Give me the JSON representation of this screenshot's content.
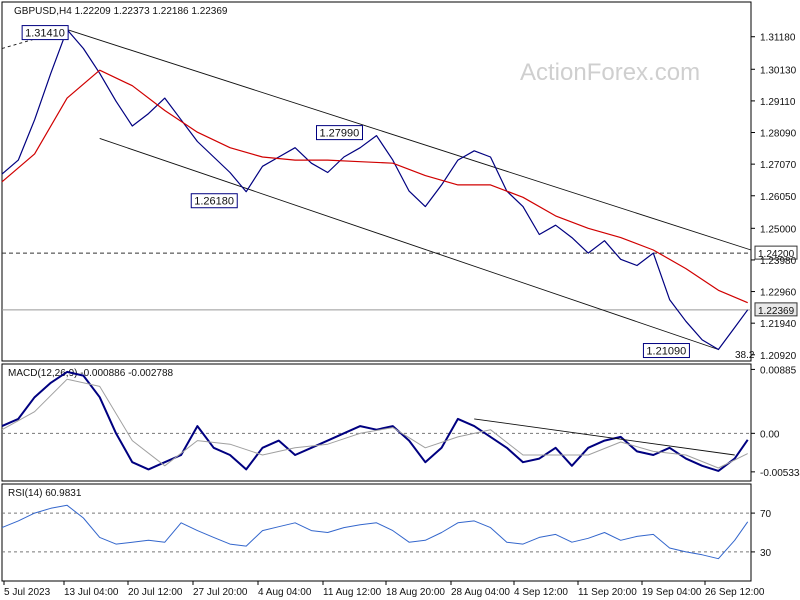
{
  "chart_data": [
    {
      "type": "line",
      "panel": "price",
      "header": "GBPUSD,H4 1.22209 1.22373 1.22186 1.22369",
      "watermark": "ActionForex.com",
      "y_ticks": [
        "1.31180",
        "1.30130",
        "1.29110",
        "1.28090",
        "1.27070",
        "1.26050",
        "1.25000",
        "1.23980",
        "1.22960",
        "1.21940",
        "1.20920"
      ],
      "ylim": [
        1.2072,
        1.323
      ],
      "x_range": [
        0,
        460
      ],
      "x_labels": [
        "5 Jul 2023",
        "13 Jul 04:00",
        "20 Jul 12:00",
        "27 Jul 20:00",
        "4 Aug 04:00",
        "11 Aug 12:00",
        "18 Aug 20:00",
        "28 Aug 04:00",
        "4 Sep 12:00",
        "11 Sep 20:00",
        "19 Sep 04:00",
        "26 Sep 12:00"
      ],
      "series": [
        {
          "name": "",
          "color": "#000080",
          "points": [
            [
              0,
              1.2675
            ],
            [
              10,
              1.272
            ],
            [
              20,
              1.285
            ],
            [
              30,
              1.3
            ],
            [
              40,
              1.3141
            ],
            [
              50,
              1.308
            ],
            [
              60,
              1.3
            ],
            [
              70,
              1.291
            ],
            [
              80,
              1.283
            ],
            [
              90,
              1.287
            ],
            [
              100,
              1.292
            ],
            [
              110,
              1.285
            ],
            [
              120,
              1.278
            ],
            [
              130,
              1.273
            ],
            [
              140,
              1.268
            ],
            [
              150,
              1.2618
            ],
            [
              160,
              1.27
            ],
            [
              170,
              1.273
            ],
            [
              180,
              1.276
            ],
            [
              190,
              1.271
            ],
            [
              200,
              1.268
            ],
            [
              210,
              1.273
            ],
            [
              220,
              1.276
            ],
            [
              230,
              1.2799
            ],
            [
              240,
              1.272
            ],
            [
              250,
              1.262
            ],
            [
              260,
              1.257
            ],
            [
              270,
              1.264
            ],
            [
              280,
              1.272
            ],
            [
              290,
              1.275
            ],
            [
              300,
              1.273
            ],
            [
              310,
              1.262
            ],
            [
              320,
              1.257
            ],
            [
              330,
              1.248
            ],
            [
              340,
              1.251
            ],
            [
              350,
              1.247
            ],
            [
              360,
              1.242
            ],
            [
              370,
              1.246
            ],
            [
              380,
              1.24
            ],
            [
              390,
              1.238
            ],
            [
              400,
              1.242
            ],
            [
              410,
              1.227
            ],
            [
              420,
              1.22
            ],
            [
              430,
              1.214
            ],
            [
              440,
              1.2109
            ],
            [
              450,
              1.218
            ],
            [
              458,
              1.2237
            ]
          ]
        },
        {
          "name": "",
          "color": "#d00000",
          "points": [
            [
              0,
              1.265
            ],
            [
              20,
              1.274
            ],
            [
              40,
              1.292
            ],
            [
              60,
              1.301
            ],
            [
              80,
              1.296
            ],
            [
              100,
              1.288
            ],
            [
              120,
              1.281
            ],
            [
              140,
              1.276
            ],
            [
              160,
              1.273
            ],
            [
              180,
              1.272
            ],
            [
              200,
              1.272
            ],
            [
              220,
              1.2715
            ],
            [
              240,
              1.271
            ],
            [
              260,
              1.267
            ],
            [
              280,
              1.264
            ],
            [
              300,
              1.264
            ],
            [
              320,
              1.26
            ],
            [
              340,
              1.254
            ],
            [
              360,
              1.25
            ],
            [
              380,
              1.247
            ],
            [
              400,
              1.243
            ],
            [
              420,
              1.237
            ],
            [
              440,
              1.23
            ],
            [
              458,
              1.226
            ]
          ]
        }
      ],
      "channel": {
        "upper": [
          [
            40,
            1.3141
          ],
          [
            460,
            1.243
          ]
        ],
        "lower": [
          [
            60,
            1.279
          ],
          [
            440,
            1.2109
          ]
        ],
        "pre": [
          [
            0,
            1.308
          ],
          [
            40,
            1.3141
          ]
        ]
      },
      "levels": [
        {
          "value": 1.242,
          "label": "1.24200",
          "style": "dashed"
        },
        {
          "value": 1.22369,
          "label": "1.22369",
          "style": "solid"
        }
      ],
      "annotations": [
        {
          "label": "1.31410",
          "x": 40,
          "y": 1.3141
        },
        {
          "label": "1.27990",
          "x": 230,
          "y": 1.2799
        },
        {
          "label": "1.26180",
          "x": 150,
          "y": 1.2618
        },
        {
          "label": "1.21090",
          "x": 440,
          "y": 1.2109
        }
      ],
      "fib_label": "38.2"
    },
    {
      "type": "line",
      "panel": "macd",
      "header": "MACD(12,26,9) -0.000886 -0.002788",
      "y_ticks": [
        "0.00885",
        "0.00",
        "-0.005334"
      ],
      "ylim": [
        -0.0066,
        0.0096
      ],
      "series": [
        {
          "name": "",
          "color": "#000080",
          "points": [
            [
              0,
              0.001
            ],
            [
              10,
              0.002
            ],
            [
              20,
              0.005
            ],
            [
              30,
              0.007
            ],
            [
              40,
              0.0085
            ],
            [
              50,
              0.008
            ],
            [
              60,
              0.005
            ],
            [
              70,
              0.0
            ],
            [
              80,
              -0.004
            ],
            [
              90,
              -0.005
            ],
            [
              100,
              -0.004
            ],
            [
              110,
              -0.003
            ],
            [
              120,
              0.001
            ],
            [
              130,
              -0.002
            ],
            [
              140,
              -0.003
            ],
            [
              150,
              -0.005
            ],
            [
              160,
              -0.002
            ],
            [
              170,
              -0.001
            ],
            [
              180,
              -0.003
            ],
            [
              190,
              -0.002
            ],
            [
              200,
              -0.001
            ],
            [
              210,
              0.0
            ],
            [
              220,
              0.001
            ],
            [
              230,
              0.0005
            ],
            [
              240,
              0.001
            ],
            [
              250,
              -0.001
            ],
            [
              260,
              -0.004
            ],
            [
              270,
              -0.002
            ],
            [
              280,
              0.002
            ],
            [
              290,
              0.001
            ],
            [
              300,
              -0.0005
            ],
            [
              310,
              -0.002
            ],
            [
              320,
              -0.004
            ],
            [
              330,
              -0.0035
            ],
            [
              340,
              -0.002
            ],
            [
              350,
              -0.0045
            ],
            [
              360,
              -0.002
            ],
            [
              370,
              -0.001
            ],
            [
              380,
              -0.0005
            ],
            [
              390,
              -0.0025
            ],
            [
              400,
              -0.003
            ],
            [
              410,
              -0.002
            ],
            [
              420,
              -0.0035
            ],
            [
              430,
              -0.0045
            ],
            [
              440,
              -0.0052
            ],
            [
              450,
              -0.0035
            ],
            [
              458,
              -0.0009
            ]
          ]
        },
        {
          "name": "",
          "color": "#a0a0a0",
          "points": [
            [
              0,
              0.0005
            ],
            [
              20,
              0.003
            ],
            [
              40,
              0.0075
            ],
            [
              60,
              0.0065
            ],
            [
              80,
              -0.001
            ],
            [
              100,
              -0.0045
            ],
            [
              120,
              -0.001
            ],
            [
              140,
              -0.0015
            ],
            [
              160,
              -0.003
            ],
            [
              180,
              -0.002
            ],
            [
              200,
              -0.0015
            ],
            [
              220,
              0.0
            ],
            [
              240,
              0.0008
            ],
            [
              260,
              -0.002
            ],
            [
              280,
              -0.0005
            ],
            [
              300,
              0.0005
            ],
            [
              320,
              -0.003
            ],
            [
              340,
              -0.003
            ],
            [
              360,
              -0.003
            ],
            [
              380,
              -0.0012
            ],
            [
              400,
              -0.0025
            ],
            [
              420,
              -0.003
            ],
            [
              440,
              -0.0048
            ],
            [
              458,
              -0.0028
            ]
          ]
        }
      ],
      "trendline": [
        [
          290,
          0.002
        ],
        [
          450,
          -0.003
        ]
      ]
    },
    {
      "type": "line",
      "panel": "rsi",
      "header": "RSI(14) 60.9831",
      "y_ticks": [
        "70",
        "30"
      ],
      "ylim": [
        0,
        100
      ],
      "levels": [
        70,
        30
      ],
      "series": [
        {
          "name": "",
          "color": "#3366cc",
          "points": [
            [
              0,
              55
            ],
            [
              10,
              62
            ],
            [
              20,
              70
            ],
            [
              30,
              75
            ],
            [
              40,
              78
            ],
            [
              50,
              65
            ],
            [
              60,
              45
            ],
            [
              70,
              38
            ],
            [
              80,
              40
            ],
            [
              90,
              42
            ],
            [
              100,
              40
            ],
            [
              110,
              60
            ],
            [
              120,
              52
            ],
            [
              130,
              45
            ],
            [
              140,
              38
            ],
            [
              150,
              36
            ],
            [
              160,
              52
            ],
            [
              170,
              56
            ],
            [
              180,
              60
            ],
            [
              190,
              52
            ],
            [
              200,
              50
            ],
            [
              210,
              55
            ],
            [
              220,
              58
            ],
            [
              230,
              60
            ],
            [
              240,
              52
            ],
            [
              250,
              40
            ],
            [
              260,
              42
            ],
            [
              270,
              50
            ],
            [
              280,
              60
            ],
            [
              290,
              62
            ],
            [
              300,
              55
            ],
            [
              310,
              40
            ],
            [
              320,
              38
            ],
            [
              330,
              45
            ],
            [
              340,
              48
            ],
            [
              350,
              40
            ],
            [
              360,
              44
            ],
            [
              370,
              50
            ],
            [
              380,
              42
            ],
            [
              390,
              46
            ],
            [
              400,
              48
            ],
            [
              410,
              34
            ],
            [
              420,
              30
            ],
            [
              430,
              27
            ],
            [
              440,
              23
            ],
            [
              450,
              42
            ],
            [
              458,
              61
            ]
          ]
        }
      ]
    }
  ]
}
